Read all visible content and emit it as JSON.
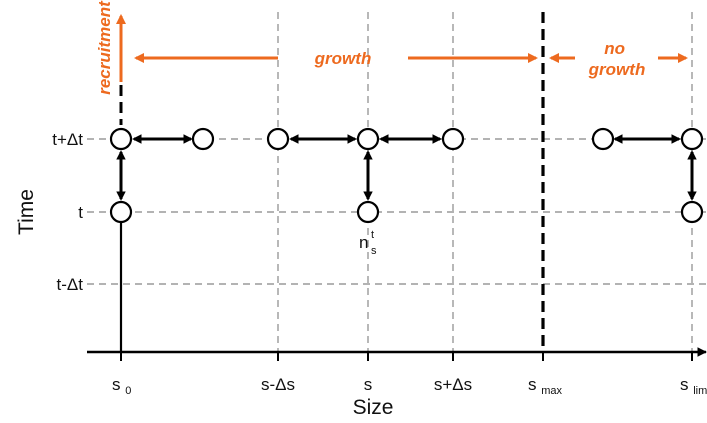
{
  "colors": {
    "accent": "#ED6A1F",
    "ink": "#111111",
    "grid": "#9a9a9a"
  },
  "axes": {
    "y_title": "Time",
    "x_title": "Size",
    "y_ticks": {
      "t_plus": "t+Δt",
      "t": "t",
      "t_minus": "t-Δt"
    },
    "x_ticks": {
      "s0": {
        "base": "s",
        "sub": "0"
      },
      "s_minus": "s-Δs",
      "s": "s",
      "s_plus": "s+Δs",
      "smax": {
        "base": "s",
        "sub": "max"
      },
      "slim": {
        "base": "s",
        "sub": "lim"
      }
    }
  },
  "annotations": {
    "recruitment": "recruitment",
    "growth": "growth",
    "no_growth_line1": "no",
    "no_growth_line2": "growth"
  },
  "node_label": {
    "base": "n",
    "sub": "s",
    "sup": "t"
  }
}
